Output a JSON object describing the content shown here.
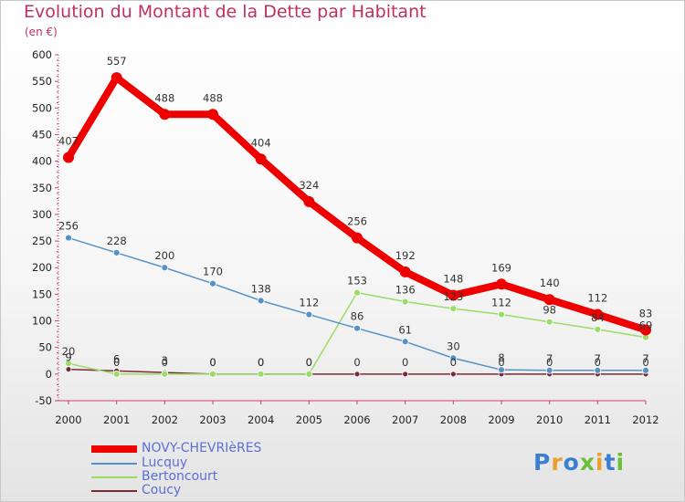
{
  "title": "Evolution du Montant de la Dette par Habitant",
  "subtitle": "(en €)",
  "logo": {
    "text": "Proxiti",
    "letter_colors": [
      "#3a7fd1",
      "#e8a030",
      "#3a7fd1",
      "#6abf3a",
      "#e8a030",
      "#3a7fd1",
      "#6abf3a"
    ]
  },
  "chart_data": {
    "type": "line",
    "title": "Evolution du Montant de la Dette par Habitant",
    "ylabel": "(en €)",
    "xlabel": "",
    "x": [
      "2000",
      "2001",
      "2002",
      "2003",
      "2004",
      "2005",
      "2006",
      "2007",
      "2008",
      "2009",
      "2010",
      "2011",
      "2012"
    ],
    "ylim": [
      -50,
      600
    ],
    "yticks": [
      -50,
      0,
      50,
      100,
      150,
      200,
      250,
      300,
      350,
      400,
      450,
      500,
      550,
      600
    ],
    "grid": false,
    "legend_placement": "bottom-left",
    "series": [
      {
        "name": "NOVY-CHEVRIèRES",
        "color": "#ee0000",
        "width": 8,
        "marker": 6,
        "values": [
          407,
          557,
          488,
          488,
          404,
          324,
          256,
          192,
          148,
          169,
          140,
          112,
          83
        ],
        "labels": [
          "407",
          "557",
          "488",
          "488",
          "404",
          "324",
          "256",
          "192",
          "148",
          "169",
          "140",
          "112",
          "83"
        ]
      },
      {
        "name": "Lucquy",
        "color": "#5592c8",
        "width": 1.5,
        "marker": 3.5,
        "values": [
          256,
          228,
          200,
          170,
          138,
          112,
          86,
          61,
          30,
          8,
          7,
          7,
          7
        ],
        "labels": [
          "256",
          "228",
          "200",
          "170",
          "138",
          "112",
          "86",
          "61",
          "30",
          "8",
          "7",
          "7",
          "7"
        ]
      },
      {
        "name": "Bertoncourt",
        "color": "#99dd66",
        "width": 1.5,
        "marker": 3.5,
        "values": [
          20,
          0,
          0,
          0,
          0,
          0,
          153,
          136,
          123,
          112,
          98,
          84,
          69
        ],
        "labels": [
          "20",
          "0",
          "0",
          "0",
          "0",
          "0",
          "153",
          "136",
          "123",
          "112",
          "98",
          "84",
          "69"
        ]
      },
      {
        "name": "Coucy",
        "color": "#7a2a36",
        "width": 1.5,
        "marker": 3,
        "values": [
          9,
          6,
          3,
          0,
          0,
          0,
          0,
          0,
          0,
          0,
          0,
          0,
          0
        ],
        "labels": [
          "9",
          "6",
          "3",
          "0",
          "0",
          "0",
          "0",
          "0",
          "0",
          "0",
          "0",
          "0",
          "0"
        ]
      }
    ]
  }
}
